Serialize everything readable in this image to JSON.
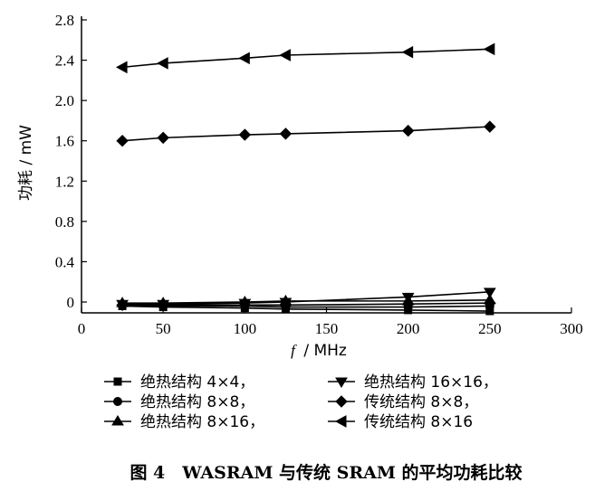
{
  "chart_data": {
    "type": "line",
    "title": "",
    "xlabel_var": "f",
    "xlabel_unit": "/ MHz",
    "ylabel": "功耗 / mW",
    "xlim": [
      0,
      300
    ],
    "ylim": [
      -0.1,
      2.8
    ],
    "x_ticks": [
      0,
      50,
      100,
      150,
      200,
      250,
      300
    ],
    "y_ticks": [
      0,
      0.4,
      0.8,
      1.2,
      1.6,
      2.0,
      2.4,
      2.8
    ],
    "y_tick_labels": [
      "0",
      "0.4",
      "0.8",
      "1.2",
      "1.6",
      "2.0",
      "2.4",
      "2.8"
    ],
    "grid": false,
    "legend_position": "bottom",
    "x": [
      25,
      50,
      100,
      125,
      200,
      250
    ],
    "series": [
      {
        "name": "绝热结构 4×4，",
        "marker": "square",
        "values": [
          -0.04,
          -0.05,
          -0.06,
          -0.07,
          -0.08,
          -0.09
        ]
      },
      {
        "name": "绝热结构 16×16，",
        "marker": "triangle-down",
        "values": [
          -0.02,
          -0.02,
          -0.01,
          0.0,
          0.05,
          0.1
        ]
      },
      {
        "name": "绝热结构 8×8，",
        "marker": "circle",
        "values": [
          -0.03,
          -0.04,
          -0.04,
          -0.05,
          -0.05,
          -0.04
        ]
      },
      {
        "name": "传统结构 8×8，",
        "marker": "diamond",
        "values": [
          -0.03,
          -0.03,
          -0.03,
          -0.03,
          -0.02,
          -0.01
        ]
      },
      {
        "name": "绝热结构 8×16，",
        "marker": "triangle-up",
        "values": [
          -0.01,
          -0.01,
          0.0,
          0.01,
          0.01,
          0.02
        ]
      },
      {
        "name": "传统结构 8×16",
        "marker": "triangle-left",
        "values": [
          2.33,
          2.37,
          2.42,
          2.45,
          2.48,
          2.51
        ]
      },
      {
        "name": "",
        "marker": "diamond",
        "values": [
          1.6,
          1.63,
          1.66,
          1.67,
          1.7,
          1.74
        ]
      }
    ]
  },
  "caption": "图 4　WASRAM 与传统 SRAM 的平均功耗比较"
}
